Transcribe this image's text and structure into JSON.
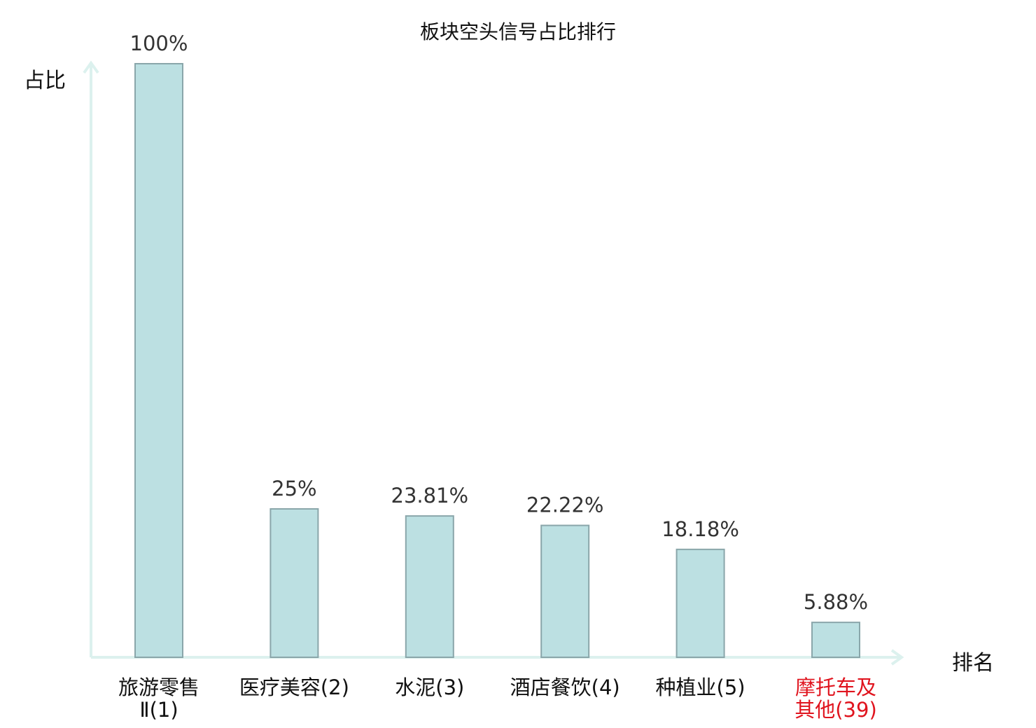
{
  "chart_data": {
    "type": "bar",
    "title": "板块空头信号占比排行",
    "ylabel": "占比",
    "xlabel": "排名",
    "categories": [
      "旅游零售Ⅱ",
      "医疗美容",
      "水泥",
      "酒店餐饮",
      "种植业",
      "摩托车及其他"
    ],
    "category_lines": [
      [
        "旅游零售",
        "Ⅱ(1)"
      ],
      [
        "医疗美容(2)"
      ],
      [
        "水泥(3)"
      ],
      [
        "酒店餐饮(4)"
      ],
      [
        "种植业(5)"
      ],
      [
        "摩托车及",
        "其他(39)"
      ]
    ],
    "ranks": [
      1,
      2,
      3,
      4,
      5,
      39
    ],
    "values": [
      100,
      25,
      23.81,
      22.22,
      18.18,
      5.88
    ],
    "value_labels": [
      "100%",
      "25%",
      "23.81%",
      "22.22%",
      "18.18%",
      "5.88%"
    ],
    "ylim": [
      0,
      100
    ],
    "highlight_index": 5,
    "grid": false,
    "colors": {
      "bar_fill": "#bce0e2",
      "bar_stroke": "#8aa6aa",
      "axis": "#dcf1ee",
      "highlight_text": "#e0141e",
      "value_text": "#333333"
    }
  }
}
